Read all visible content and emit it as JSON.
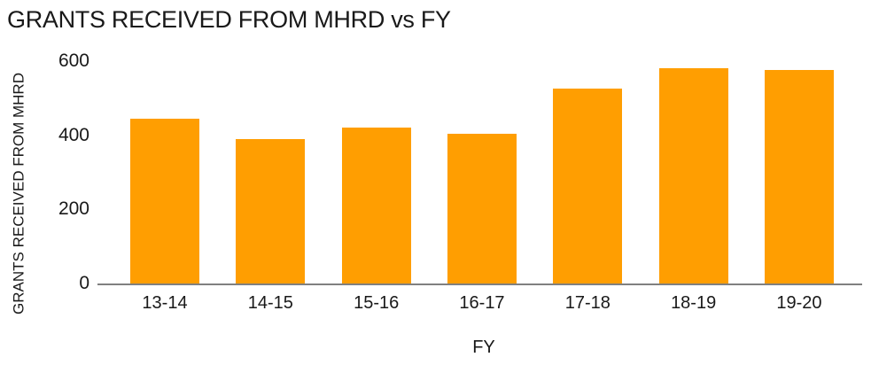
{
  "chart_data": {
    "type": "bar",
    "title": "GRANTS RECEIVED FROM MHRD vs FY",
    "xlabel": "FY",
    "ylabel": "GRANTS RECEIVED FROM MHRD",
    "categories": [
      "13-14",
      "14-15",
      "15-16",
      "16-17",
      "17-18",
      "18-19",
      "19-20"
    ],
    "values": [
      445,
      390,
      420,
      405,
      525,
      580,
      575
    ],
    "ylim": [
      0,
      600
    ],
    "yticks": [
      "0",
      "200",
      "400",
      "600"
    ],
    "grid": false,
    "legend": "none",
    "colors": {
      "bar": "#ff9e01",
      "axis_line": "#808080",
      "text": "#191919",
      "background": "#ffffff"
    }
  }
}
